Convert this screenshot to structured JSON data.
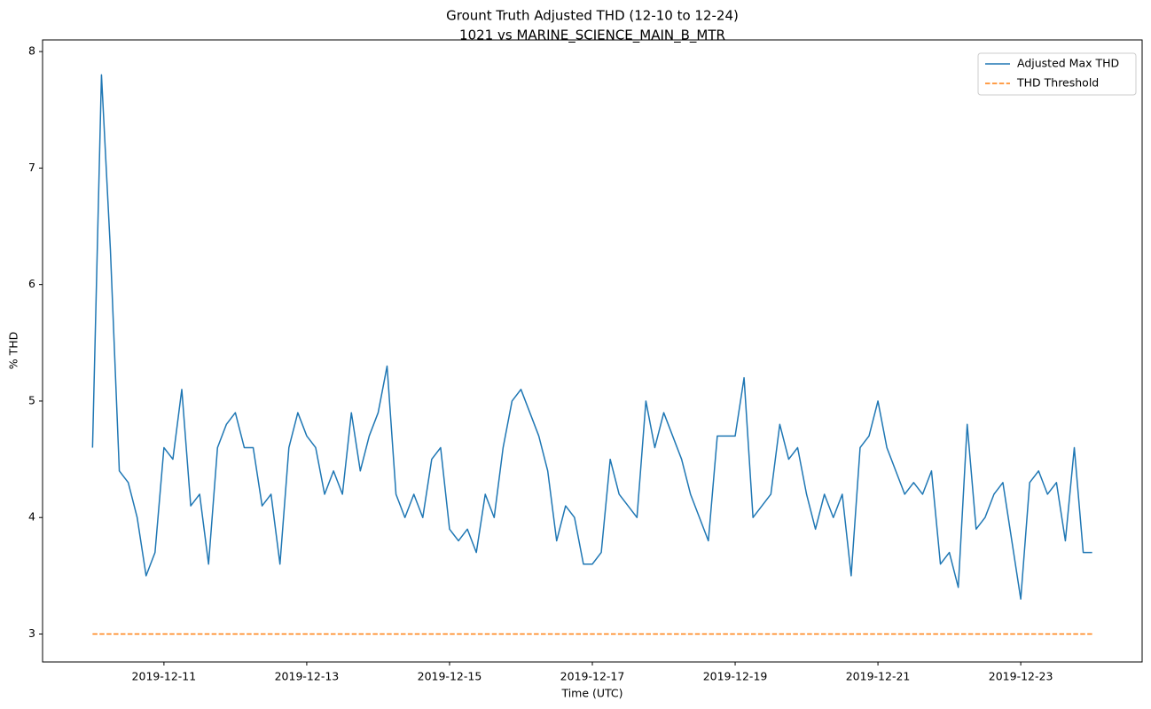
{
  "chart_data": {
    "type": "line",
    "title": "Grount Truth Adjusted THD (12-10 to 12-24)",
    "subtitle": "1021 vs MARINE_SCIENCE_MAIN_B_MTR",
    "x_label": "Time (UTC)",
    "y_label": "% THD",
    "xlim": [
      "2019-12-09T07:12",
      "2019-12-24T16:48"
    ],
    "xticks": [
      "2019-12-11",
      "2019-12-13",
      "2019-12-15",
      "2019-12-17",
      "2019-12-19",
      "2019-12-21",
      "2019-12-23"
    ],
    "ylim": [
      2.76,
      8.1
    ],
    "yticks": [
      3,
      4,
      5,
      6,
      7,
      8
    ],
    "legend": "upper right",
    "series": [
      {
        "name": "Adjusted Max THD",
        "color": "#1f77b4",
        "linestyle": "solid",
        "x": [
          "2019-12-10T00:00",
          "2019-12-10T03:00",
          "2019-12-10T06:00",
          "2019-12-10T09:00",
          "2019-12-10T12:00",
          "2019-12-10T15:00",
          "2019-12-10T18:00",
          "2019-12-10T21:00",
          "2019-12-11T00:00",
          "2019-12-11T03:00",
          "2019-12-11T06:00",
          "2019-12-11T09:00",
          "2019-12-11T12:00",
          "2019-12-11T15:00",
          "2019-12-11T18:00",
          "2019-12-11T21:00",
          "2019-12-12T00:00",
          "2019-12-12T03:00",
          "2019-12-12T06:00",
          "2019-12-12T09:00",
          "2019-12-12T12:00",
          "2019-12-12T15:00",
          "2019-12-12T18:00",
          "2019-12-12T21:00",
          "2019-12-13T00:00",
          "2019-12-13T03:00",
          "2019-12-13T06:00",
          "2019-12-13T09:00",
          "2019-12-13T12:00",
          "2019-12-13T15:00",
          "2019-12-13T18:00",
          "2019-12-13T21:00",
          "2019-12-14T00:00",
          "2019-12-14T03:00",
          "2019-12-14T06:00",
          "2019-12-14T09:00",
          "2019-12-14T12:00",
          "2019-12-14T15:00",
          "2019-12-14T18:00",
          "2019-12-14T21:00",
          "2019-12-15T00:00",
          "2019-12-15T03:00",
          "2019-12-15T06:00",
          "2019-12-15T09:00",
          "2019-12-15T12:00",
          "2019-12-15T15:00",
          "2019-12-15T18:00",
          "2019-12-15T21:00",
          "2019-12-16T00:00",
          "2019-12-16T03:00",
          "2019-12-16T06:00",
          "2019-12-16T09:00",
          "2019-12-16T12:00",
          "2019-12-16T15:00",
          "2019-12-16T18:00",
          "2019-12-16T21:00",
          "2019-12-17T00:00",
          "2019-12-17T03:00",
          "2019-12-17T06:00",
          "2019-12-17T09:00",
          "2019-12-17T12:00",
          "2019-12-17T15:00",
          "2019-12-17T18:00",
          "2019-12-17T21:00",
          "2019-12-18T00:00",
          "2019-12-18T03:00",
          "2019-12-18T06:00",
          "2019-12-18T09:00",
          "2019-12-18T12:00",
          "2019-12-18T15:00",
          "2019-12-18T18:00",
          "2019-12-18T21:00",
          "2019-12-19T00:00",
          "2019-12-19T03:00",
          "2019-12-19T06:00",
          "2019-12-19T09:00",
          "2019-12-19T12:00",
          "2019-12-19T15:00",
          "2019-12-19T18:00",
          "2019-12-19T21:00",
          "2019-12-20T00:00",
          "2019-12-20T03:00",
          "2019-12-20T06:00",
          "2019-12-20T09:00",
          "2019-12-20T12:00",
          "2019-12-20T15:00",
          "2019-12-20T18:00",
          "2019-12-20T21:00",
          "2019-12-21T00:00",
          "2019-12-21T03:00",
          "2019-12-21T06:00",
          "2019-12-21T09:00",
          "2019-12-21T12:00",
          "2019-12-21T15:00",
          "2019-12-21T18:00",
          "2019-12-21T21:00",
          "2019-12-22T00:00",
          "2019-12-22T03:00",
          "2019-12-22T06:00",
          "2019-12-22T09:00",
          "2019-12-22T12:00",
          "2019-12-22T15:00",
          "2019-12-22T18:00",
          "2019-12-22T21:00",
          "2019-12-23T00:00",
          "2019-12-23T03:00",
          "2019-12-23T06:00",
          "2019-12-23T09:00",
          "2019-12-23T12:00",
          "2019-12-23T15:00",
          "2019-12-23T18:00",
          "2019-12-23T21:00",
          "2019-12-24T00:00"
        ],
        "values": [
          4.6,
          7.8,
          6.3,
          4.4,
          4.3,
          4.0,
          3.5,
          3.7,
          4.6,
          4.5,
          5.1,
          4.1,
          4.2,
          3.6,
          4.6,
          4.8,
          4.9,
          4.6,
          4.6,
          4.1,
          4.2,
          3.6,
          4.6,
          4.9,
          4.7,
          4.6,
          4.2,
          4.4,
          4.2,
          4.9,
          4.4,
          4.7,
          4.9,
          5.3,
          4.2,
          4.0,
          4.2,
          4.0,
          4.5,
          4.6,
          3.9,
          3.8,
          3.9,
          3.7,
          4.2,
          4.0,
          4.6,
          5.0,
          5.1,
          4.9,
          4.7,
          4.4,
          3.8,
          4.1,
          4.0,
          3.6,
          3.6,
          3.7,
          4.5,
          4.2,
          4.1,
          4.0,
          5.0,
          4.6,
          4.9,
          4.7,
          4.5,
          4.2,
          4.0,
          3.8,
          4.7,
          4.7,
          4.7,
          5.2,
          4.0,
          4.1,
          4.2,
          4.8,
          4.5,
          4.6,
          4.2,
          3.9,
          4.2,
          4.0,
          4.2,
          3.5,
          4.6,
          4.7,
          5.0,
          4.6,
          4.4,
          4.2,
          4.3,
          4.2,
          4.4,
          3.6,
          3.7,
          3.4,
          4.8,
          3.9,
          4.0,
          4.2,
          4.3,
          3.8,
          3.3,
          4.3,
          4.4,
          4.2,
          4.3,
          3.8,
          4.6,
          3.7,
          3.7
        ]
      },
      {
        "name": "THD Threshold",
        "color": "#ff7f0e",
        "linestyle": "dashed",
        "x": [
          "2019-12-10T00:00",
          "2019-12-24T00:00"
        ],
        "values": [
          3,
          3
        ]
      }
    ]
  }
}
